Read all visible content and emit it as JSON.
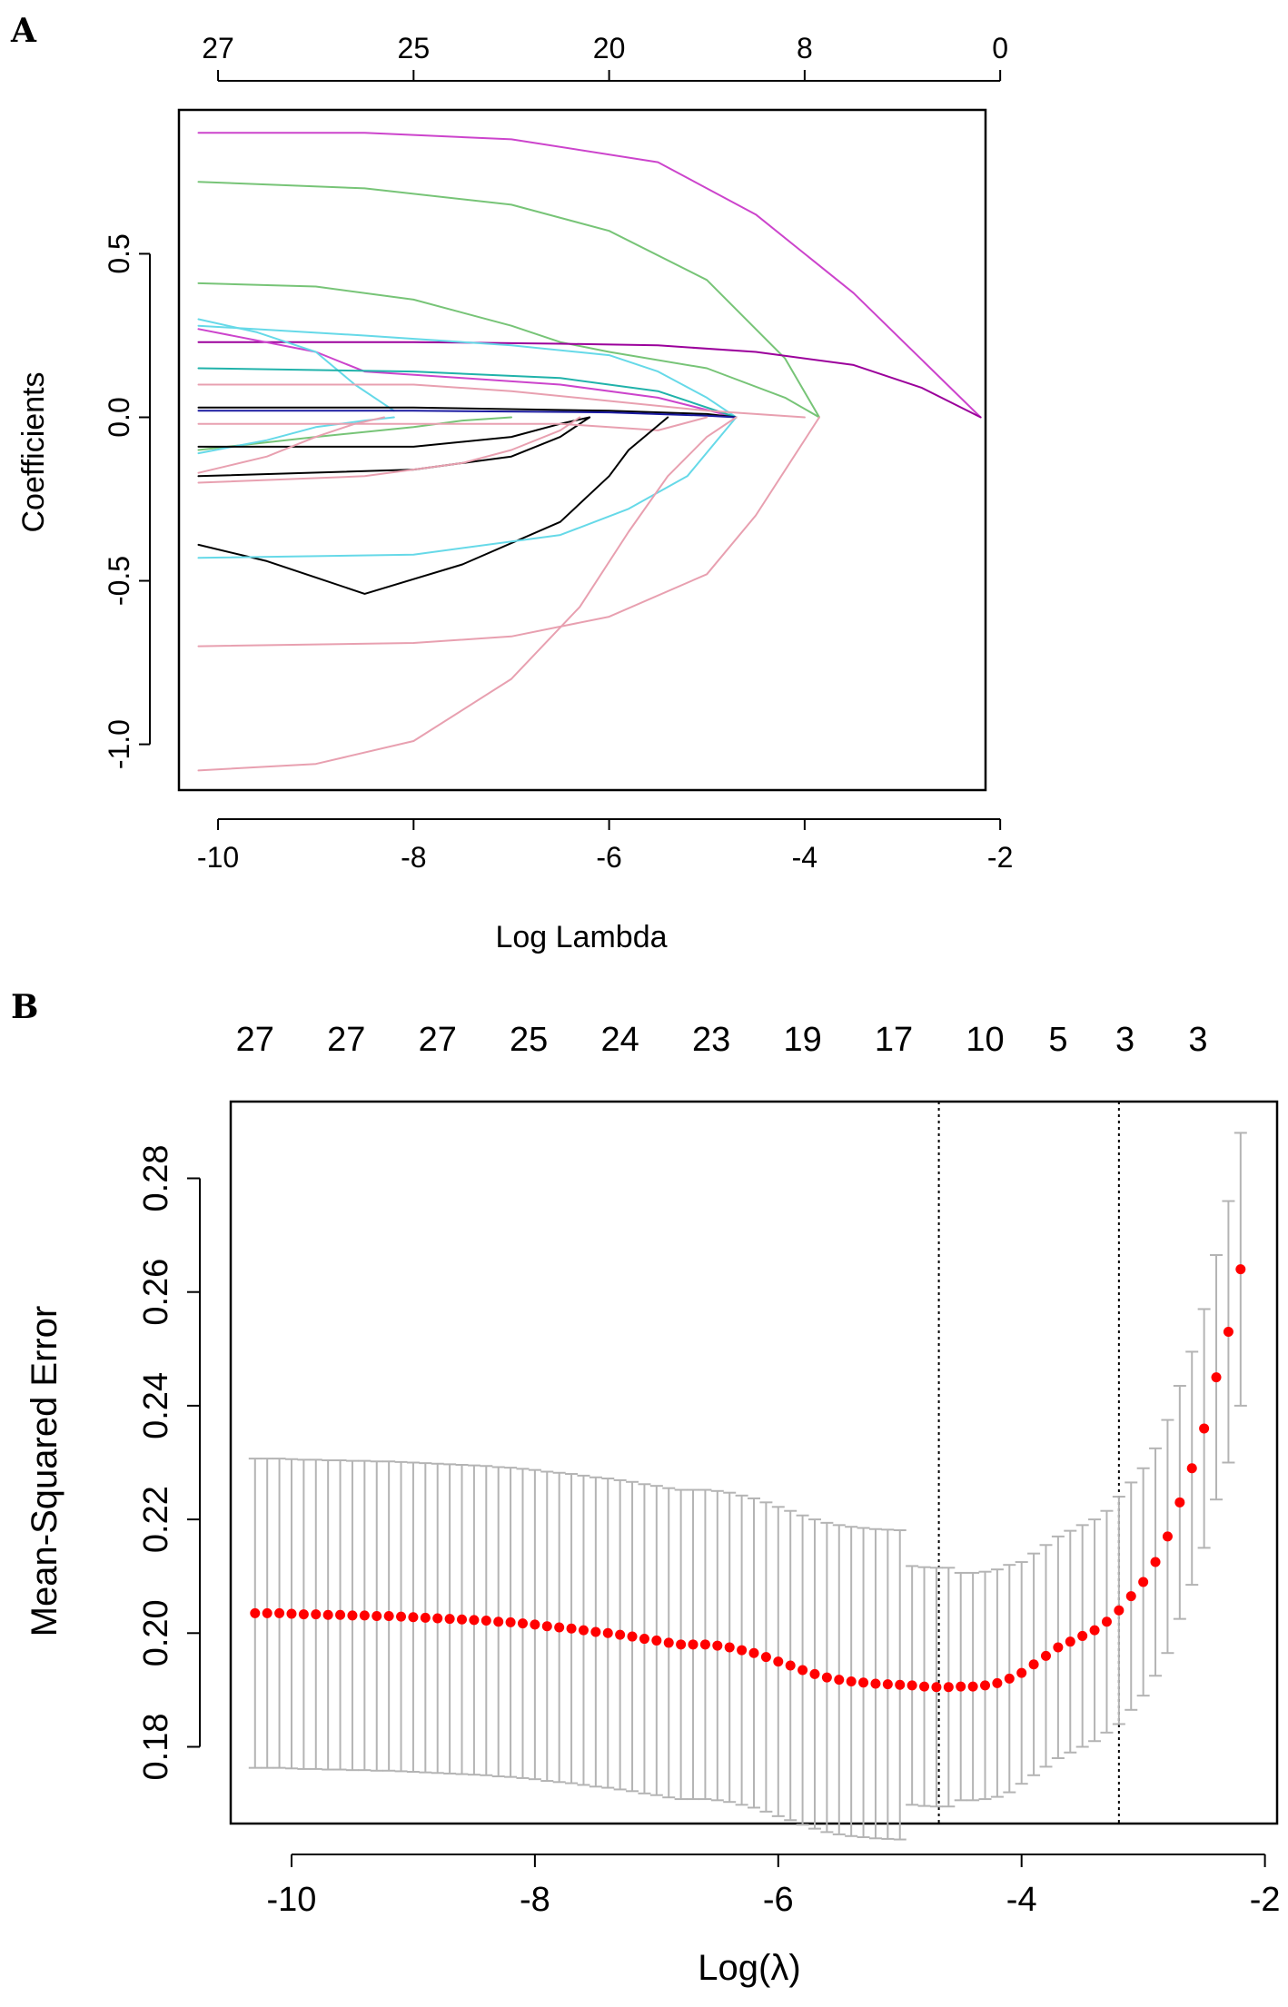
{
  "chart_data": [
    {
      "panel": "A",
      "type": "line",
      "xlabel": "Log Lambda",
      "ylabel": "Coefficients",
      "xlim": [
        -10.4,
        -2.15
      ],
      "ylim": [
        -1.14,
        0.94
      ],
      "x_ticks": [
        "-10",
        "-8",
        "-6",
        "-4",
        "-2"
      ],
      "x_tick_values": [
        -10,
        -8,
        -6,
        -4,
        -2
      ],
      "y_ticks": [
        "-1.0",
        "-0.5",
        "0.0",
        "0.5"
      ],
      "y_tick_values": [
        -1.0,
        -0.5,
        0.0,
        0.5
      ],
      "top_ticks": [
        "27",
        "25",
        "20",
        "8",
        "0"
      ],
      "top_tick_values": [
        -10,
        -8,
        -6,
        -4,
        -2
      ],
      "series": [
        {
          "name": "path-1",
          "color": "#cc44cc",
          "x": [
            -10.2,
            -8.5,
            -7,
            -5.5,
            -4.5,
            -3.5,
            -2.2
          ],
          "y": [
            0.87,
            0.87,
            0.85,
            0.78,
            0.62,
            0.38,
            0.0
          ]
        },
        {
          "name": "path-2",
          "color": "#77c477",
          "x": [
            -10.2,
            -8.5,
            -7,
            -6,
            -5,
            -4.2,
            -3.85
          ],
          "y": [
            0.72,
            0.7,
            0.65,
            0.57,
            0.42,
            0.18,
            0.0
          ]
        },
        {
          "name": "path-3",
          "color": "#77c477",
          "x": [
            -10.2,
            -9,
            -8,
            -7,
            -6.5,
            -6,
            -5,
            -4.2,
            -3.85
          ],
          "y": [
            0.41,
            0.4,
            0.36,
            0.28,
            0.23,
            0.2,
            0.15,
            0.06,
            0.0
          ]
        },
        {
          "name": "path-4",
          "color": "#9b009b",
          "x": [
            -10.2,
            -8,
            -6.5,
            -5.5,
            -4.5,
            -3.5,
            -2.8,
            -2.2
          ],
          "y": [
            0.23,
            0.23,
            0.225,
            0.22,
            0.2,
            0.16,
            0.09,
            0.0
          ]
        },
        {
          "name": "path-5",
          "color": "#66d9e8",
          "x": [
            -10.2,
            -8.5,
            -7,
            -6,
            -5.5,
            -5,
            -4.7
          ],
          "y": [
            0.28,
            0.25,
            0.22,
            0.19,
            0.14,
            0.06,
            0.0
          ]
        },
        {
          "name": "path-6",
          "color": "#cc44cc",
          "x": [
            -10.2,
            -9,
            -8.5,
            -7.5,
            -6.5,
            -5.5,
            -4.7
          ],
          "y": [
            0.27,
            0.2,
            0.14,
            0.12,
            0.1,
            0.06,
            0.0
          ]
        },
        {
          "name": "path-7",
          "color": "#66d9e8",
          "x": [
            -10.2,
            -9.6,
            -9,
            -8.6,
            -8.2
          ],
          "y": [
            0.3,
            0.26,
            0.2,
            0.1,
            0.02
          ]
        },
        {
          "name": "path-8",
          "color": "#20b2aa",
          "x": [
            -10.2,
            -8,
            -6.5,
            -5.5,
            -5,
            -4.7
          ],
          "y": [
            0.15,
            0.14,
            0.12,
            0.08,
            0.03,
            0.0
          ]
        },
        {
          "name": "path-9",
          "color": "#e8a0b0",
          "x": [
            -10.2,
            -8,
            -7,
            -6,
            -5,
            -4
          ],
          "y": [
            0.1,
            0.1,
            0.08,
            0.05,
            0.02,
            0.0
          ]
        },
        {
          "name": "path-10",
          "color": "#000000",
          "x": [
            -10.2,
            -8,
            -6,
            -5,
            -4.7
          ],
          "y": [
            0.03,
            0.03,
            0.02,
            0.01,
            0.0
          ]
        },
        {
          "name": "path-11",
          "color": "#1a1aa0",
          "x": [
            -10.2,
            -8,
            -6,
            -5,
            -4.7
          ],
          "y": [
            0.02,
            0.02,
            0.015,
            0.005,
            0.0
          ]
        },
        {
          "name": "path-12",
          "color": "#77c477",
          "x": [
            -10.2,
            -9,
            -8,
            -7.5,
            -7
          ],
          "y": [
            -0.1,
            -0.06,
            -0.03,
            -0.01,
            0.0
          ]
        },
        {
          "name": "path-13",
          "color": "#66d9e8",
          "x": [
            -10.2,
            -9.5,
            -9,
            -8.5,
            -8.2
          ],
          "y": [
            -0.11,
            -0.07,
            -0.03,
            -0.01,
            0.0
          ]
        },
        {
          "name": "path-14",
          "color": "#000000",
          "x": [
            -10.2,
            -8,
            -7,
            -6.5,
            -6.2
          ],
          "y": [
            -0.09,
            -0.09,
            -0.06,
            -0.02,
            0.0
          ]
        },
        {
          "name": "path-15",
          "color": "#e8a0b0",
          "x": [
            -10.2,
            -9.5,
            -9,
            -8.6,
            -8.3
          ],
          "y": [
            -0.17,
            -0.12,
            -0.06,
            -0.02,
            0.0
          ]
        },
        {
          "name": "path-16",
          "color": "#000000",
          "x": [
            -10.2,
            -8,
            -7,
            -6.5,
            -6.2
          ],
          "y": [
            -0.18,
            -0.16,
            -0.12,
            -0.06,
            0.0
          ]
        },
        {
          "name": "path-17",
          "color": "#e8a0b0",
          "x": [
            -10.2,
            -8.5,
            -7.5,
            -7,
            -6.5,
            -6.3
          ],
          "y": [
            -0.2,
            -0.18,
            -0.14,
            -0.1,
            -0.04,
            0.0
          ]
        },
        {
          "name": "path-18",
          "color": "#e8a0b0",
          "x": [
            -10.2,
            -8,
            -6.5,
            -6,
            -5.5,
            -5
          ],
          "y": [
            -0.02,
            -0.02,
            -0.02,
            -0.03,
            -0.04,
            0.0
          ]
        },
        {
          "name": "path-19",
          "color": "#000000",
          "x": [
            -10.2,
            -9.5,
            -8.5,
            -7.5,
            -6.5,
            -6,
            -5.8,
            -5.4
          ],
          "y": [
            -0.39,
            -0.44,
            -0.54,
            -0.45,
            -0.32,
            -0.18,
            -0.1,
            0.0
          ]
        },
        {
          "name": "path-20",
          "color": "#66d9e8",
          "x": [
            -10.2,
            -8,
            -6.5,
            -5.8,
            -5.2,
            -4.7
          ],
          "y": [
            -0.43,
            -0.42,
            -0.36,
            -0.28,
            -0.18,
            0.0
          ]
        },
        {
          "name": "path-21",
          "color": "#e8a0b0",
          "x": [
            -10.2,
            -8,
            -7,
            -6,
            -5,
            -4.5,
            -3.85
          ],
          "y": [
            -0.7,
            -0.69,
            -0.67,
            -0.61,
            -0.48,
            -0.3,
            0.0
          ]
        },
        {
          "name": "path-22",
          "color": "#e8a0b0",
          "x": [
            -10.2,
            -9,
            -8,
            -7,
            -6.3,
            -5.8,
            -5.4,
            -5.0,
            -4.7
          ],
          "y": [
            -1.08,
            -1.06,
            -0.99,
            -0.8,
            -0.58,
            -0.35,
            -0.18,
            -0.06,
            0.0
          ]
        }
      ]
    },
    {
      "panel": "B",
      "type": "scatter",
      "xlabel": "Log(λ)",
      "ylabel": "Mean-Squared Error",
      "xlim": [
        -10.5,
        -1.9
      ],
      "ylim": [
        0.1665,
        0.2935
      ],
      "x_ticks": [
        "-10",
        "-8",
        "-6",
        "-4",
        "-2"
      ],
      "x_tick_values": [
        -10,
        -8,
        -6,
        -4,
        -2
      ],
      "y_ticks": [
        "0.18",
        "0.20",
        "0.22",
        "0.24",
        "0.26",
        "0.28"
      ],
      "y_tick_values": [
        0.18,
        0.2,
        0.22,
        0.24,
        0.26,
        0.28
      ],
      "top_ticks": [
        "27",
        "27",
        "27",
        "25",
        "24",
        "23",
        "19",
        "17",
        "10",
        "5",
        "3",
        "3"
      ],
      "top_tick_values": [
        -10.3,
        -9.55,
        -8.8,
        -8.05,
        -7.3,
        -6.55,
        -5.8,
        -5.05,
        -4.3,
        -3.7,
        -3.15,
        -2.55
      ],
      "vlines": [
        -4.68,
        -3.2
      ],
      "point_color": "#ff0000",
      "errorbar_color": "#b4b4b4",
      "x": [
        -10.3,
        -10.2,
        -10.1,
        -10.0,
        -9.9,
        -9.8,
        -9.7,
        -9.6,
        -9.5,
        -9.4,
        -9.3,
        -9.2,
        -9.1,
        -9.0,
        -8.9,
        -8.8,
        -8.7,
        -8.6,
        -8.5,
        -8.4,
        -8.3,
        -8.2,
        -8.1,
        -8.0,
        -7.9,
        -7.8,
        -7.7,
        -7.6,
        -7.5,
        -7.4,
        -7.3,
        -7.2,
        -7.1,
        -7.0,
        -6.9,
        -6.8,
        -6.7,
        -6.6,
        -6.5,
        -6.4,
        -6.3,
        -6.2,
        -6.1,
        -6.0,
        -5.9,
        -5.8,
        -5.7,
        -5.6,
        -5.5,
        -5.4,
        -5.3,
        -5.2,
        -5.1,
        -5.0,
        -4.9,
        -4.8,
        -4.7,
        -4.6,
        -4.5,
        -4.4,
        -4.3,
        -4.2,
        -4.1,
        -4.0,
        -3.9,
        -3.8,
        -3.7,
        -3.6,
        -3.5,
        -3.4,
        -3.3,
        -3.2,
        -3.1,
        -3.0,
        -2.9,
        -2.8,
        -2.7,
        -2.6,
        -2.5,
        -2.4,
        -2.3,
        -2.2
      ],
      "y": [
        0.2035,
        0.2035,
        0.2035,
        0.2034,
        0.2033,
        0.2033,
        0.2032,
        0.2032,
        0.2031,
        0.2031,
        0.203,
        0.203,
        0.2029,
        0.2028,
        0.2027,
        0.2026,
        0.2025,
        0.2024,
        0.2023,
        0.2022,
        0.202,
        0.2019,
        0.2017,
        0.2015,
        0.2012,
        0.201,
        0.2008,
        0.2005,
        0.2002,
        0.2,
        0.1997,
        0.1994,
        0.199,
        0.1987,
        0.1983,
        0.198,
        0.198,
        0.198,
        0.1978,
        0.1975,
        0.197,
        0.1965,
        0.1958,
        0.195,
        0.1943,
        0.1935,
        0.1928,
        0.1922,
        0.1918,
        0.1915,
        0.1913,
        0.1911,
        0.191,
        0.1909,
        0.1908,
        0.1906,
        0.1905,
        0.1905,
        0.1906,
        0.1906,
        0.1908,
        0.1912,
        0.192,
        0.193,
        0.1945,
        0.196,
        0.1975,
        0.1985,
        0.1995,
        0.2005,
        0.202,
        0.204,
        0.2065,
        0.209,
        0.2125,
        0.217,
        0.223,
        0.229,
        0.236,
        0.245,
        0.253,
        0.264
      ],
      "err": [
        0.0272,
        0.0272,
        0.0272,
        0.0272,
        0.0272,
        0.0272,
        0.0272,
        0.0272,
        0.0272,
        0.0272,
        0.0272,
        0.0272,
        0.0272,
        0.0272,
        0.0272,
        0.0272,
        0.0272,
        0.0272,
        0.0272,
        0.0272,
        0.0272,
        0.0272,
        0.0272,
        0.0272,
        0.0272,
        0.0272,
        0.0272,
        0.0272,
        0.0272,
        0.0272,
        0.0272,
        0.0272,
        0.0272,
        0.0272,
        0.0272,
        0.0272,
        0.0272,
        0.0272,
        0.0272,
        0.0272,
        0.0272,
        0.0272,
        0.0272,
        0.0272,
        0.0272,
        0.0272,
        0.0272,
        0.0272,
        0.0272,
        0.0272,
        0.0272,
        0.0272,
        0.0272,
        0.0272,
        0.021,
        0.021,
        0.021,
        0.021,
        0.02,
        0.02,
        0.02,
        0.02,
        0.02,
        0.0195,
        0.0195,
        0.0195,
        0.0195,
        0.0195,
        0.0195,
        0.0195,
        0.0195,
        0.02,
        0.02,
        0.02,
        0.02,
        0.0205,
        0.0205,
        0.0205,
        0.021,
        0.0215,
        0.023,
        0.024
      ]
    }
  ]
}
